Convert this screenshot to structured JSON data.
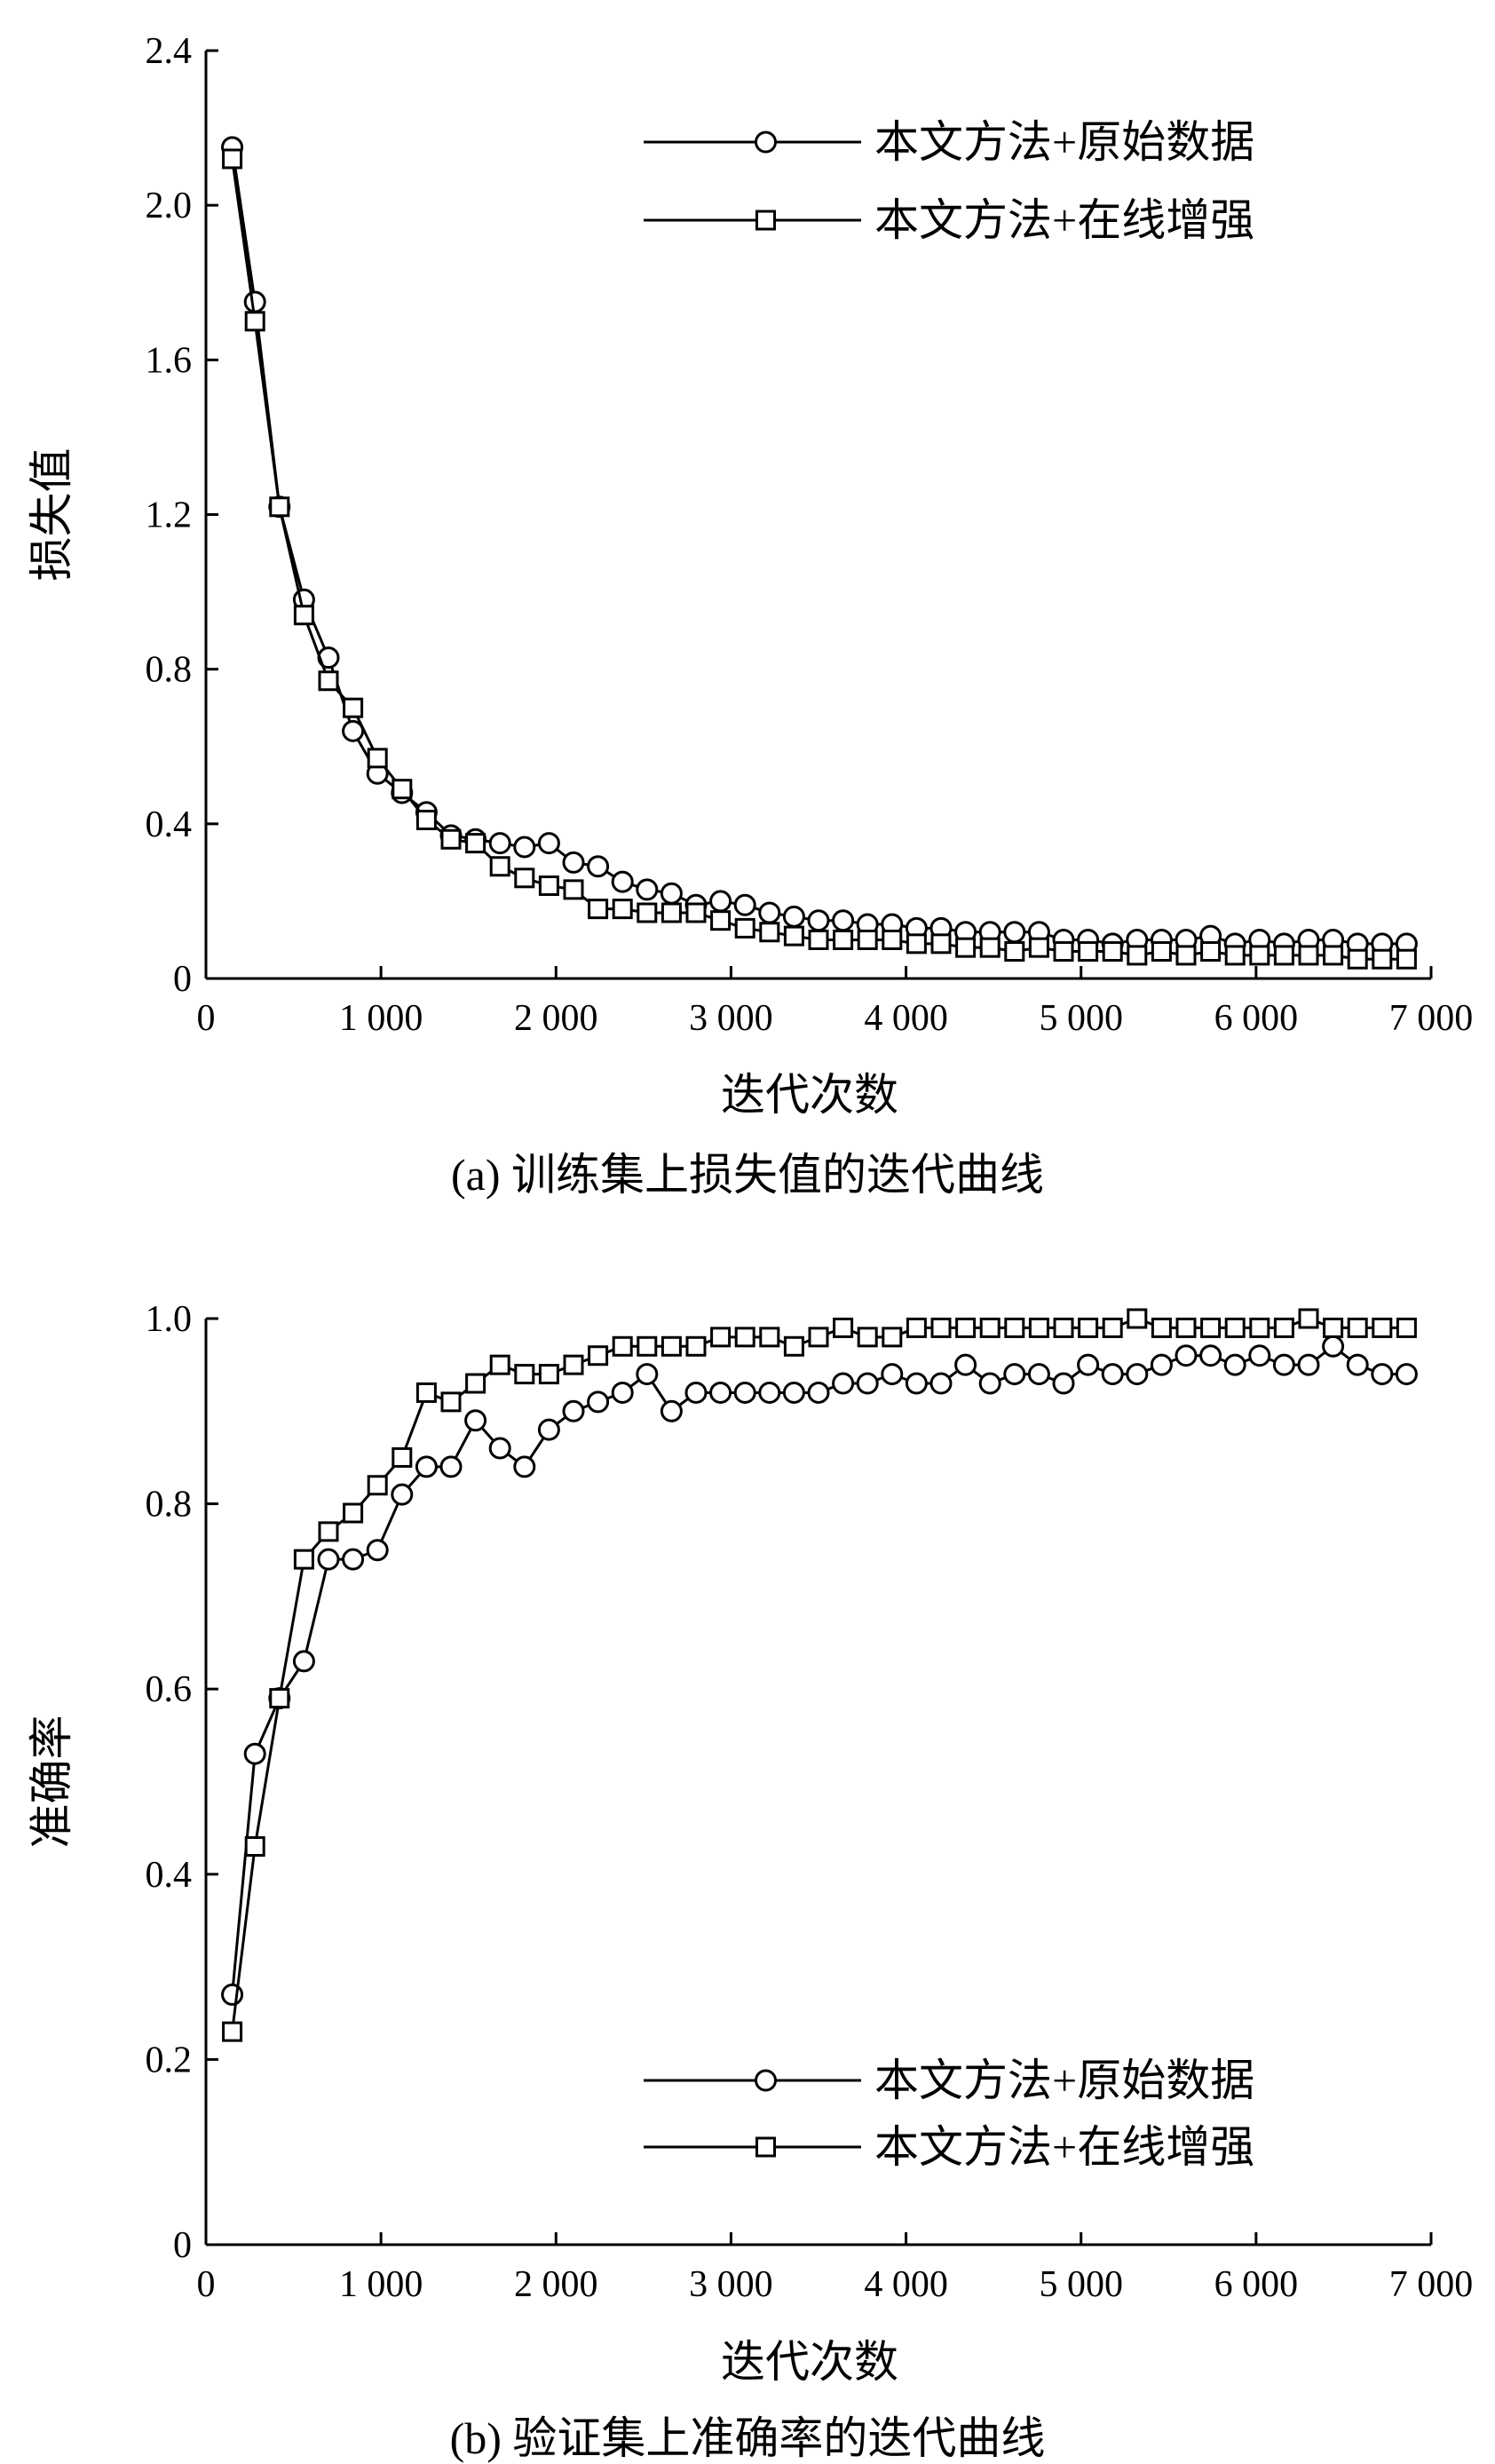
{
  "chart_data": [
    {
      "type": "line",
      "caption": "(a) 训练集上损失值的迭代曲线",
      "xlabel": "迭代次数",
      "ylabel": "损失值",
      "xlim": [
        0,
        7000
      ],
      "ylim": [
        0,
        2.4
      ],
      "xticks": [
        0,
        1000,
        2000,
        3000,
        4000,
        5000,
        6000,
        7000
      ],
      "xtick_labels": [
        "0",
        "1 000",
        "2 000",
        "3 000",
        "4 000",
        "5 000",
        "6 000",
        "7 000"
      ],
      "yticks": [
        0,
        0.4,
        0.8,
        1.2,
        1.6,
        2.0,
        2.4
      ],
      "ytick_labels": [
        "0",
        "0.4",
        "0.8",
        "1.2",
        "1.6",
        "2.0",
        "2.4"
      ],
      "grid": false,
      "legend_position": "top-right",
      "x": [
        150,
        280,
        420,
        560,
        700,
        840,
        980,
        1120,
        1260,
        1400,
        1540,
        1680,
        1820,
        1960,
        2100,
        2240,
        2380,
        2520,
        2660,
        2800,
        2940,
        3080,
        3220,
        3360,
        3500,
        3640,
        3780,
        3920,
        4060,
        4200,
        4340,
        4480,
        4620,
        4760,
        4900,
        5040,
        5180,
        5320,
        5460,
        5600,
        5740,
        5880,
        6020,
        6160,
        6300,
        6440,
        6580,
        6720,
        6860
      ],
      "series": [
        {
          "name": "本文方法+原始数据",
          "marker": "circle",
          "values": [
            2.15,
            1.75,
            1.22,
            0.98,
            0.83,
            0.64,
            0.53,
            0.48,
            0.43,
            0.37,
            0.36,
            0.35,
            0.34,
            0.35,
            0.3,
            0.29,
            0.25,
            0.23,
            0.22,
            0.19,
            0.2,
            0.19,
            0.17,
            0.16,
            0.15,
            0.15,
            0.14,
            0.14,
            0.13,
            0.13,
            0.12,
            0.12,
            0.12,
            0.12,
            0.1,
            0.1,
            0.09,
            0.1,
            0.1,
            0.1,
            0.11,
            0.09,
            0.1,
            0.09,
            0.1,
            0.1,
            0.09,
            0.09,
            0.09
          ]
        },
        {
          "name": "本文方法+在线增强",
          "marker": "square",
          "values": [
            2.12,
            1.7,
            1.22,
            0.94,
            0.77,
            0.7,
            0.57,
            0.49,
            0.41,
            0.36,
            0.35,
            0.29,
            0.26,
            0.24,
            0.23,
            0.18,
            0.18,
            0.17,
            0.17,
            0.17,
            0.15,
            0.13,
            0.12,
            0.11,
            0.1,
            0.1,
            0.1,
            0.1,
            0.09,
            0.09,
            0.08,
            0.08,
            0.07,
            0.08,
            0.07,
            0.07,
            0.07,
            0.06,
            0.07,
            0.06,
            0.07,
            0.06,
            0.06,
            0.06,
            0.06,
            0.06,
            0.05,
            0.05,
            0.05
          ]
        }
      ]
    },
    {
      "type": "line",
      "caption": "(b) 验证集上准确率的迭代曲线",
      "xlabel": "迭代次数",
      "ylabel": "准确率",
      "xlim": [
        0,
        7000
      ],
      "ylim": [
        0,
        1.0
      ],
      "xticks": [
        0,
        1000,
        2000,
        3000,
        4000,
        5000,
        6000,
        7000
      ],
      "xtick_labels": [
        "0",
        "1 000",
        "2 000",
        "3 000",
        "4 000",
        "5 000",
        "6 000",
        "7 000"
      ],
      "yticks": [
        0,
        0.2,
        0.4,
        0.6,
        0.8,
        1.0
      ],
      "ytick_labels": [
        "0",
        "0.2",
        "0.4",
        "0.6",
        "0.8",
        "1.0"
      ],
      "grid": false,
      "legend_position": "bottom-right",
      "x": [
        150,
        280,
        420,
        560,
        700,
        840,
        980,
        1120,
        1260,
        1400,
        1540,
        1680,
        1820,
        1960,
        2100,
        2240,
        2380,
        2520,
        2660,
        2800,
        2940,
        3080,
        3220,
        3360,
        3500,
        3640,
        3780,
        3920,
        4060,
        4200,
        4340,
        4480,
        4620,
        4760,
        4900,
        5040,
        5180,
        5320,
        5460,
        5600,
        5740,
        5880,
        6020,
        6160,
        6300,
        6440,
        6580,
        6720,
        6860
      ],
      "series": [
        {
          "name": "本文方法+原始数据",
          "marker": "circle",
          "values": [
            0.27,
            0.53,
            0.59,
            0.63,
            0.74,
            0.74,
            0.75,
            0.81,
            0.84,
            0.84,
            0.89,
            0.86,
            0.84,
            0.88,
            0.9,
            0.91,
            0.92,
            0.94,
            0.9,
            0.92,
            0.92,
            0.92,
            0.92,
            0.92,
            0.92,
            0.93,
            0.93,
            0.94,
            0.93,
            0.93,
            0.95,
            0.93,
            0.94,
            0.94,
            0.93,
            0.95,
            0.94,
            0.94,
            0.95,
            0.96,
            0.96,
            0.95,
            0.96,
            0.95,
            0.95,
            0.97,
            0.95,
            0.94,
            0.94
          ]
        },
        {
          "name": "本文方法+在线增强",
          "marker": "square",
          "values": [
            0.23,
            0.43,
            0.59,
            0.74,
            0.77,
            0.79,
            0.82,
            0.85,
            0.92,
            0.91,
            0.93,
            0.95,
            0.94,
            0.94,
            0.95,
            0.96,
            0.97,
            0.97,
            0.97,
            0.97,
            0.98,
            0.98,
            0.98,
            0.97,
            0.98,
            0.99,
            0.98,
            0.98,
            0.99,
            0.99,
            0.99,
            0.99,
            0.99,
            0.99,
            0.99,
            0.99,
            0.99,
            1.0,
            0.99,
            0.99,
            0.99,
            0.99,
            0.99,
            0.99,
            1.0,
            0.99,
            0.99,
            0.99,
            0.99
          ]
        }
      ]
    }
  ]
}
